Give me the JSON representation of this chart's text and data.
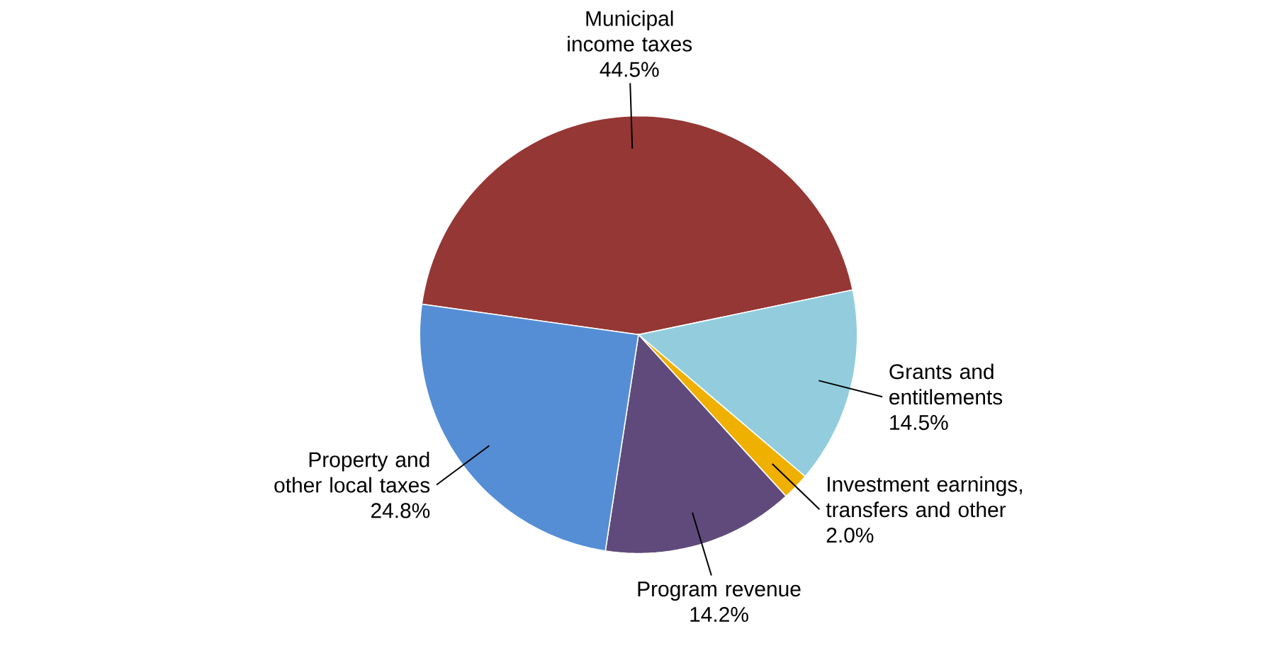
{
  "chart_data": {
    "type": "pie",
    "categories": [
      "Municipal income taxes",
      "Grants and entitlements",
      "Investment earnings, transfers and other",
      "Program revenue",
      "Property and other local taxes"
    ],
    "values": [
      44.5,
      14.5,
      2.0,
      14.2,
      24.8
    ],
    "value_labels": [
      "44.5%",
      "14.5%",
      "2.0%",
      "14.2%",
      "24.8%"
    ],
    "colors": [
      "#953735",
      "#93cddd",
      "#f0b000",
      "#604a7b",
      "#558ed5"
    ]
  }
}
